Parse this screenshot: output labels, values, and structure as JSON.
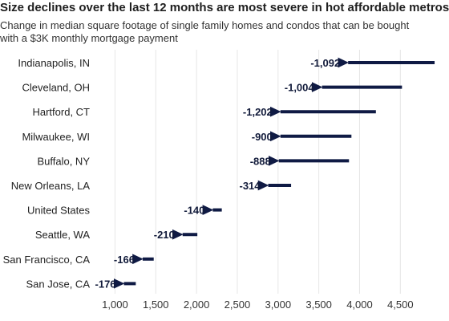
{
  "title": "Size declines over the last 12 months are most severe in hot affordable metros",
  "subtitle_line1": "Change in median square footage of single family homes and condos that can be bought",
  "subtitle_line2": "with a $3K monthly mortgage payment",
  "colors": {
    "arrow": "#0f1a44",
    "grid": "#e6e6e6",
    "text": "#222222"
  },
  "chart_data": {
    "type": "arrow",
    "xlim": [
      750,
      4900
    ],
    "xticks": [
      1000,
      1500,
      2000,
      2500,
      3000,
      3500,
      4000,
      4500
    ],
    "xtick_labels": [
      "1,000",
      "1,500",
      "2,000",
      "2,500",
      "3,000",
      "3,500",
      "4,000",
      "4,500"
    ],
    "grid": "vertical",
    "categories": [
      "Indianapolis, IN",
      "Cleveland, OH",
      "Hartford, CT",
      "Milwaukee, WI",
      "Buffalo, NY",
      "New Orleans, LA",
      "United States",
      "Seattle, WA",
      "San Francisco, CA",
      "San Jose, CA"
    ],
    "start": [
      4920,
      4520,
      4200,
      3900,
      3870,
      3160,
      2310,
      2010,
      1475,
      1255
    ],
    "end": [
      3830,
      3510,
      3000,
      3000,
      2980,
      2850,
      2170,
      1800,
      1310,
      1080
    ],
    "change_labels": [
      "-1,092",
      "-1,004",
      "-1,202",
      "-900",
      "-888",
      "-314",
      "-140",
      "-210",
      "-166",
      "-176"
    ]
  }
}
